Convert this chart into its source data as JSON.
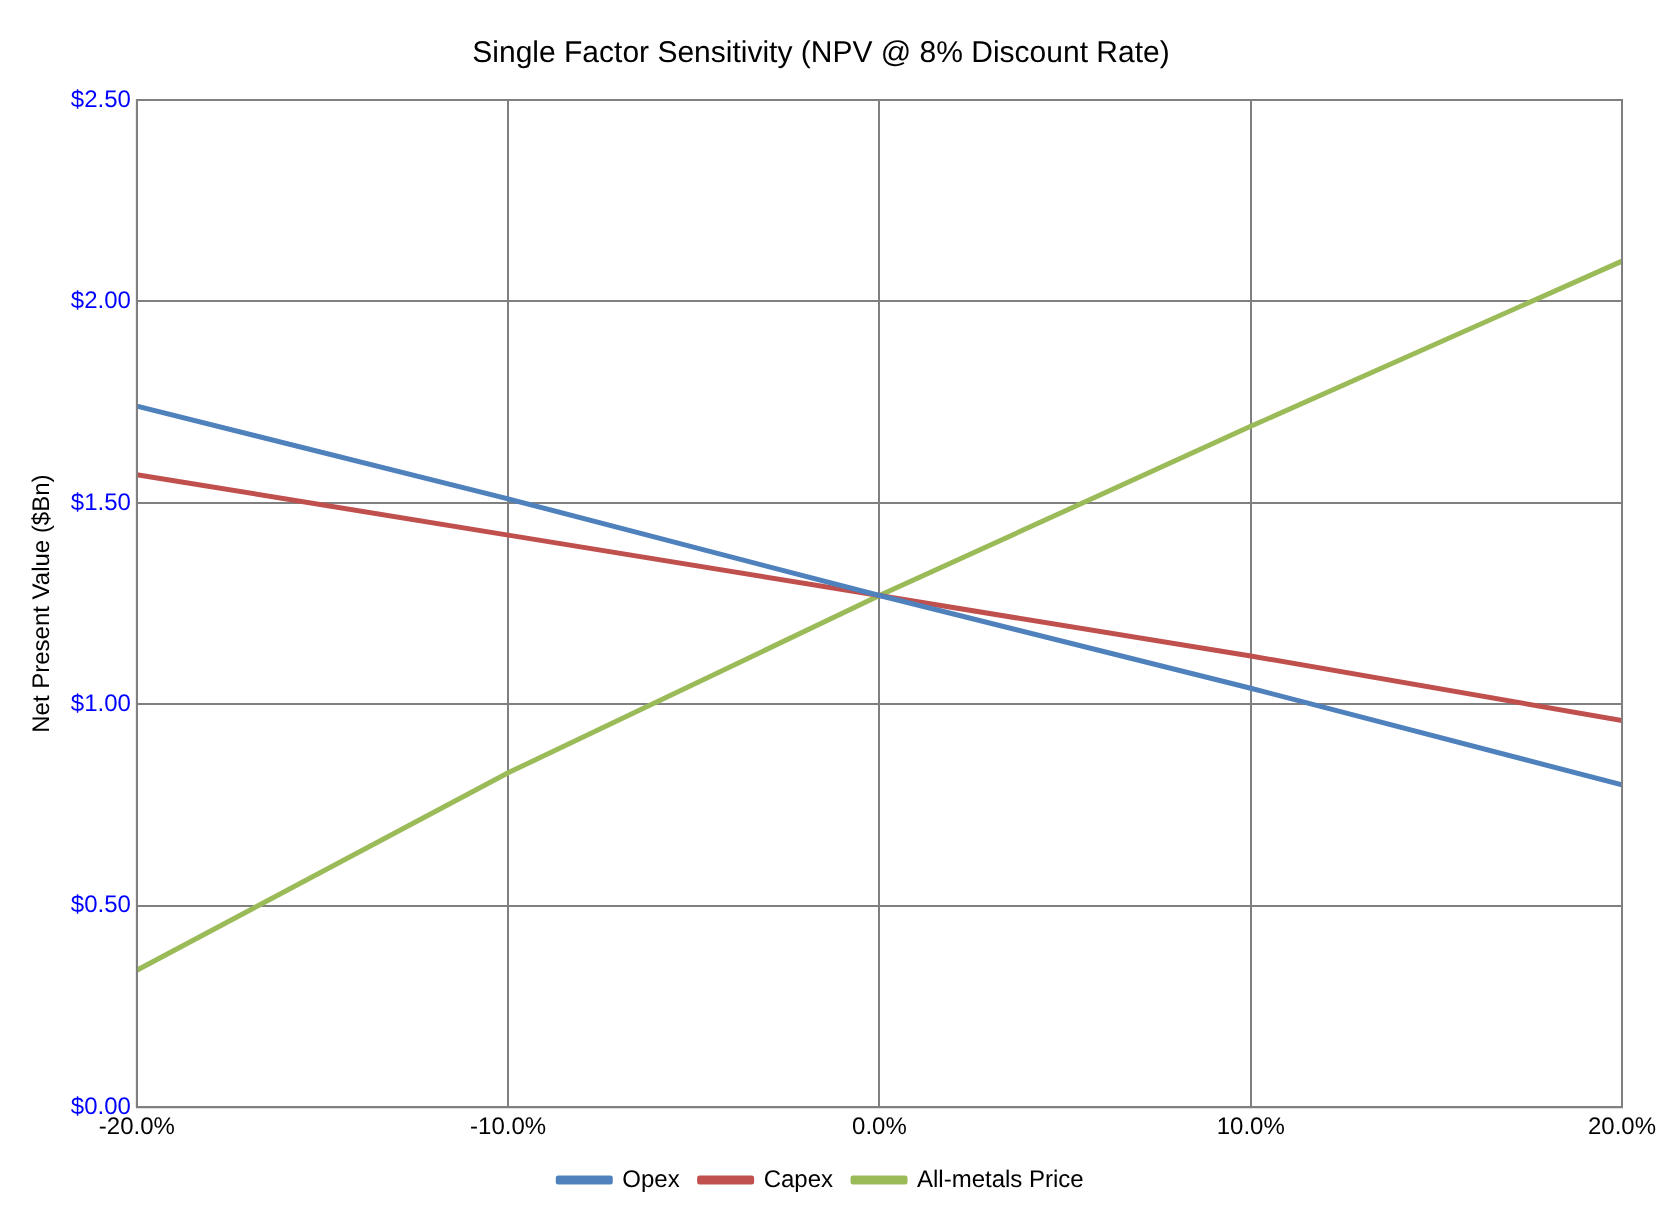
{
  "chart_data": {
    "type": "line",
    "title": "Single Factor Sensitivity (NPV @ 8% Discount Rate)",
    "ylabel": "Net Present Value ($Bn)",
    "x": [
      -20,
      -10,
      0,
      10,
      20
    ],
    "series": [
      {
        "name": "Opex",
        "color": "#4f81bd",
        "values": [
          1.74,
          1.51,
          1.27,
          1.04,
          0.8
        ]
      },
      {
        "name": "Capex",
        "color": "#c0504d",
        "values": [
          1.57,
          1.42,
          1.27,
          1.12,
          0.96
        ]
      },
      {
        "name": "All-metals Price",
        "color": "#9bbb59",
        "values": [
          0.34,
          0.83,
          1.27,
          1.69,
          2.1
        ]
      }
    ],
    "xlim": [
      -20,
      20
    ],
    "xticks": [
      {
        "value": -20,
        "label": "-20.0%"
      },
      {
        "value": -10,
        "label": "-10.0%"
      },
      {
        "value": 0,
        "label": "0.0%"
      },
      {
        "value": 10,
        "label": "10.0%"
      },
      {
        "value": 20,
        "label": "20.0%"
      }
    ],
    "ylim": [
      0,
      2.5
    ],
    "yticks": [
      {
        "value": 0,
        "label": "$0.00"
      },
      {
        "value": 0.5,
        "label": "$0.50"
      },
      {
        "value": 1,
        "label": "$1.00"
      },
      {
        "value": 1.5,
        "label": "$1.50"
      },
      {
        "value": 2,
        "label": "$2.00"
      },
      {
        "value": 2.5,
        "label": "$2.50"
      }
    ],
    "grid": true,
    "legend": "bottom",
    "marker": "none",
    "line_style": "solid"
  }
}
